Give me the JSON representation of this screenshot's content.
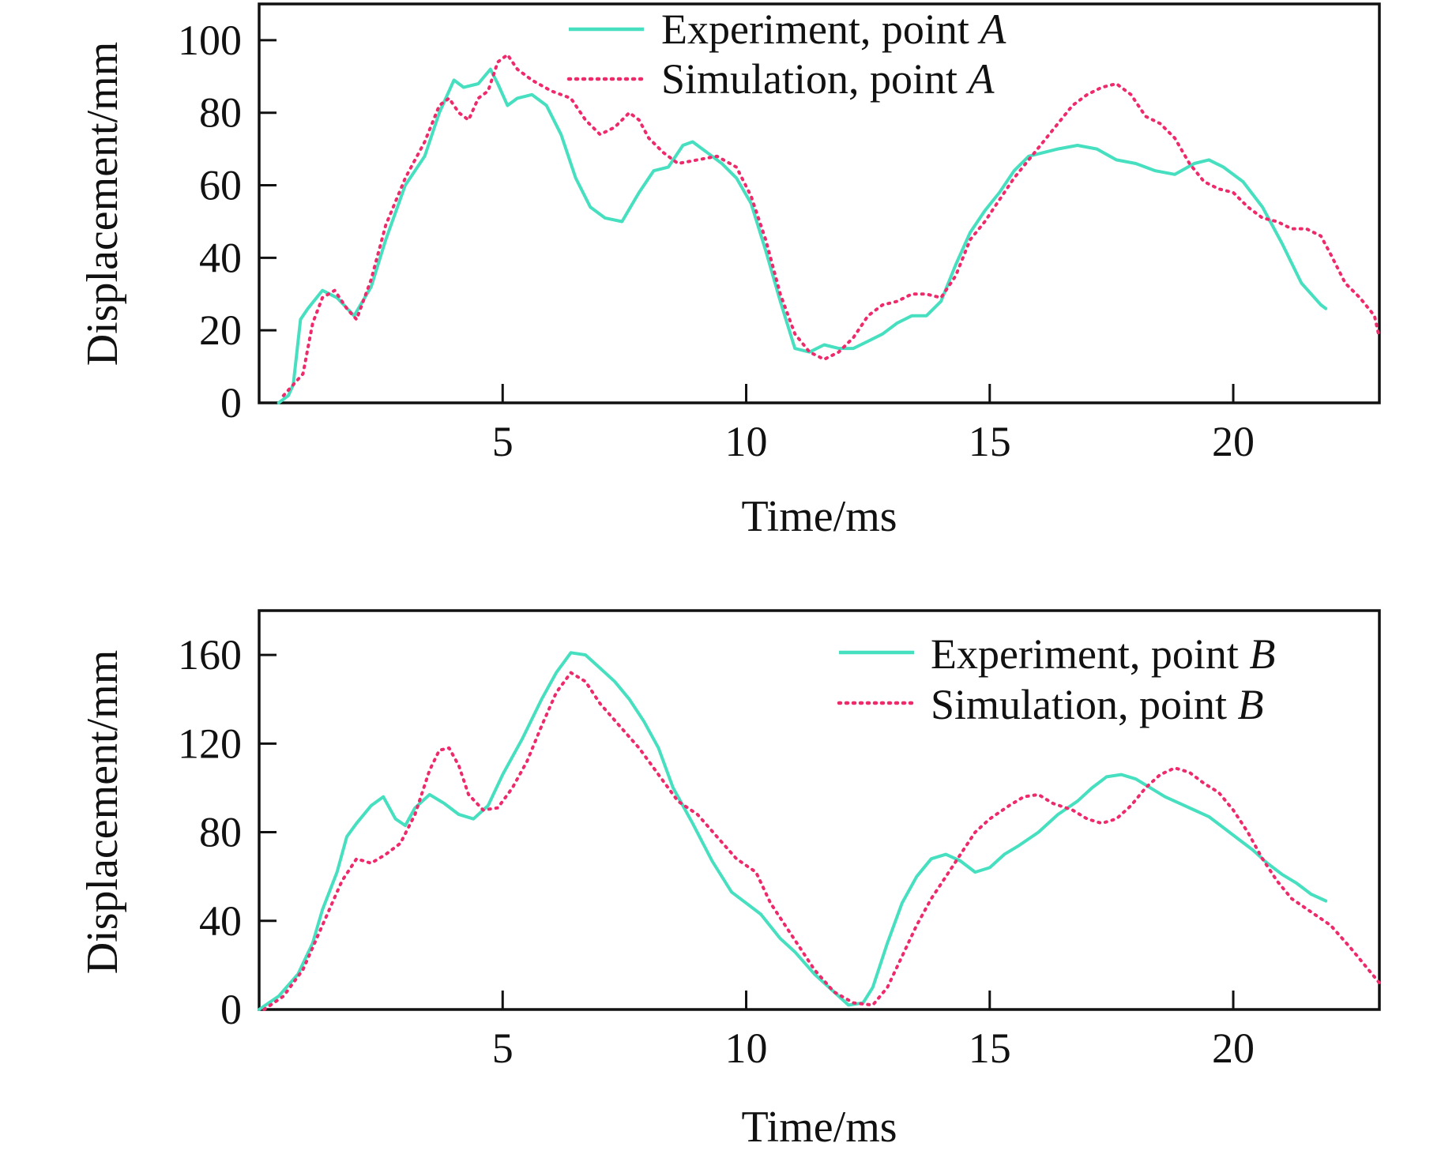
{
  "colors": {
    "experiment": "#46dfc0",
    "simulation": "#ee2a6a",
    "axis": "#111111",
    "background": "#ffffff"
  },
  "chart_data": [
    {
      "type": "line",
      "xlabel": "Time/ms",
      "ylabel": "Displacement/mm",
      "xlim": [
        0,
        23
      ],
      "ylim": [
        0,
        110
      ],
      "x_ticks": [
        5,
        10,
        15,
        20
      ],
      "x_tick_labels": [
        "5",
        "10",
        "15",
        "20"
      ],
      "y_ticks": [
        0,
        20,
        40,
        60,
        80,
        100
      ],
      "y_tick_labels": [
        "0",
        "20",
        "40",
        "60",
        "80",
        "100"
      ],
      "legend_position": "top-center",
      "series": [
        {
          "name": "Experiment, point A",
          "name_prefix": "Experiment, point ",
          "name_point": "A",
          "style": "solid",
          "x": [
            0.4,
            0.6,
            0.7,
            0.85,
            1.0,
            1.3,
            1.6,
            1.95,
            2.3,
            2.6,
            3.0,
            3.4,
            3.7,
            4.0,
            4.2,
            4.5,
            4.75,
            4.9,
            5.1,
            5.3,
            5.6,
            5.9,
            6.2,
            6.5,
            6.8,
            7.1,
            7.45,
            7.8,
            8.1,
            8.4,
            8.7,
            8.9,
            9.2,
            9.5,
            9.8,
            10.1,
            10.4,
            10.7,
            11.0,
            11.3,
            11.6,
            11.9,
            12.2,
            12.5,
            12.8,
            13.1,
            13.4,
            13.7,
            14.0,
            14.3,
            14.6,
            14.9,
            15.2,
            15.5,
            15.8,
            16.1,
            16.4,
            16.8,
            17.2,
            17.6,
            18.0,
            18.4,
            18.8,
            19.2,
            19.5,
            19.8,
            20.2,
            20.6,
            21.0,
            21.4,
            21.8,
            21.9
          ],
          "y": [
            0,
            2,
            5,
            23,
            26,
            31,
            29,
            24,
            32,
            45,
            60,
            68,
            80,
            89,
            87,
            88,
            92,
            88,
            82,
            84,
            85,
            82,
            74,
            62,
            54,
            51,
            50,
            58,
            64,
            65,
            71,
            72,
            69,
            66,
            62,
            55,
            42,
            28,
            15,
            14,
            16,
            15,
            15,
            17,
            19,
            22,
            24,
            24,
            28,
            38,
            47,
            53,
            58,
            64,
            68,
            69,
            70,
            71,
            70,
            67,
            66,
            64,
            63,
            66,
            67,
            65,
            61,
            54,
            44,
            33,
            27,
            26
          ]
        },
        {
          "name": "Simulation, point A",
          "name_prefix": "Simulation, point ",
          "name_point": "A",
          "style": "dotted",
          "x": [
            0.5,
            0.7,
            0.9,
            1.1,
            1.3,
            1.55,
            1.8,
            2.0,
            2.3,
            2.6,
            3.0,
            3.4,
            3.7,
            3.9,
            4.1,
            4.3,
            4.5,
            4.7,
            4.9,
            5.1,
            5.3,
            5.6,
            6.0,
            6.4,
            6.7,
            7.0,
            7.3,
            7.6,
            7.8,
            8.0,
            8.3,
            8.6,
            9.0,
            9.4,
            9.8,
            10.1,
            10.4,
            10.7,
            11.0,
            11.3,
            11.6,
            11.9,
            12.2,
            12.5,
            12.8,
            13.1,
            13.4,
            13.7,
            14.0,
            14.3,
            14.6,
            14.9,
            15.2,
            15.5,
            15.8,
            16.1,
            16.4,
            16.7,
            17.0,
            17.3,
            17.6,
            17.9,
            18.2,
            18.5,
            18.8,
            19.1,
            19.4,
            19.7,
            20.0,
            20.3,
            20.6,
            20.9,
            21.2,
            21.5,
            21.8,
            22.0,
            22.3,
            22.6,
            22.9,
            23.0
          ],
          "y": [
            2,
            5,
            8,
            22,
            29,
            31,
            26,
            23,
            34,
            49,
            62,
            72,
            82,
            84,
            80,
            78,
            84,
            86,
            94,
            96,
            92,
            89,
            86,
            84,
            78,
            74,
            76,
            80,
            78,
            73,
            69,
            66,
            67,
            68,
            65,
            57,
            45,
            30,
            19,
            14,
            12,
            14,
            18,
            24,
            27,
            28,
            30,
            30,
            29,
            35,
            45,
            50,
            56,
            62,
            67,
            72,
            77,
            82,
            85,
            87,
            88,
            85,
            79,
            77,
            73,
            66,
            61,
            59,
            58,
            54,
            51,
            50,
            48,
            48,
            46,
            41,
            33,
            29,
            24,
            18
          ]
        }
      ]
    },
    {
      "type": "line",
      "xlabel": "Time/ms",
      "ylabel": "Displacement/mm",
      "xlim": [
        0,
        23
      ],
      "ylim": [
        0,
        180
      ],
      "x_ticks": [
        5,
        10,
        15,
        20
      ],
      "x_tick_labels": [
        "5",
        "10",
        "15",
        "20"
      ],
      "y_ticks": [
        0,
        40,
        80,
        120,
        160
      ],
      "y_tick_labels": [
        "0",
        "40",
        "80",
        "120",
        "160"
      ],
      "legend_position": "top-right",
      "series": [
        {
          "name": "Experiment, point B",
          "name_prefix": "Experiment, point ",
          "name_point": "B",
          "style": "solid",
          "x": [
            0.0,
            0.4,
            0.8,
            1.1,
            1.3,
            1.6,
            1.8,
            2.0,
            2.3,
            2.55,
            2.8,
            3.0,
            3.2,
            3.5,
            3.8,
            4.1,
            4.4,
            4.7,
            5.0,
            5.4,
            5.8,
            6.1,
            6.4,
            6.7,
            7.0,
            7.3,
            7.6,
            7.9,
            8.2,
            8.5,
            8.9,
            9.3,
            9.7,
            10.0,
            10.3,
            10.7,
            11.0,
            11.4,
            11.8,
            12.1,
            12.4,
            12.6,
            12.9,
            13.2,
            13.5,
            13.8,
            14.1,
            14.4,
            14.7,
            15.0,
            15.3,
            15.6,
            16.0,
            16.4,
            16.8,
            17.1,
            17.4,
            17.7,
            18.0,
            18.3,
            18.6,
            18.9,
            19.2,
            19.5,
            19.8,
            20.1,
            20.4,
            20.7,
            21.0,
            21.3,
            21.6,
            21.9
          ],
          "y": [
            0,
            6,
            16,
            30,
            45,
            62,
            78,
            84,
            92,
            96,
            86,
            83,
            91,
            97,
            93,
            88,
            86,
            92,
            106,
            122,
            140,
            152,
            161,
            160,
            154,
            148,
            140,
            130,
            118,
            100,
            84,
            67,
            53,
            48,
            43,
            32,
            26,
            16,
            8,
            2,
            3,
            10,
            30,
            48,
            60,
            68,
            70,
            67,
            62,
            64,
            70,
            74,
            80,
            88,
            94,
            100,
            105,
            106,
            104,
            100,
            96,
            93,
            90,
            87,
            82,
            77,
            72,
            66,
            61,
            57,
            52,
            49
          ]
        },
        {
          "name": "Simulation, point B",
          "name_prefix": "Simulation, point ",
          "name_point": "B",
          "style": "dotted",
          "x": [
            0.1,
            0.5,
            0.9,
            1.3,
            1.7,
            2.0,
            2.3,
            2.6,
            2.9,
            3.2,
            3.5,
            3.7,
            3.9,
            4.1,
            4.3,
            4.6,
            4.9,
            5.2,
            5.5,
            5.8,
            6.1,
            6.4,
            6.7,
            7.0,
            7.4,
            7.8,
            8.2,
            8.6,
            9.0,
            9.4,
            9.8,
            10.2,
            10.5,
            10.8,
            11.1,
            11.4,
            11.8,
            12.2,
            12.6,
            12.9,
            13.2,
            13.5,
            13.8,
            14.1,
            14.4,
            14.7,
            15.0,
            15.4,
            15.7,
            16.0,
            16.3,
            16.7,
            17.0,
            17.3,
            17.6,
            17.9,
            18.2,
            18.5,
            18.8,
            19.1,
            19.4,
            19.7,
            20.0,
            20.3,
            20.6,
            20.9,
            21.2,
            21.6,
            22.0,
            22.4,
            22.7,
            23.0
          ],
          "y": [
            0,
            6,
            18,
            38,
            58,
            68,
            66,
            70,
            75,
            88,
            108,
            117,
            118,
            110,
            97,
            90,
            91,
            100,
            112,
            128,
            143,
            152,
            148,
            138,
            128,
            118,
            106,
            94,
            88,
            78,
            68,
            62,
            48,
            38,
            28,
            18,
            8,
            3,
            2,
            10,
            24,
            38,
            50,
            60,
            70,
            80,
            86,
            92,
            96,
            97,
            93,
            90,
            86,
            84,
            86,
            92,
            100,
            106,
            109,
            107,
            102,
            98,
            90,
            80,
            68,
            58,
            50,
            44,
            38,
            28,
            20,
            12
          ]
        }
      ]
    }
  ]
}
